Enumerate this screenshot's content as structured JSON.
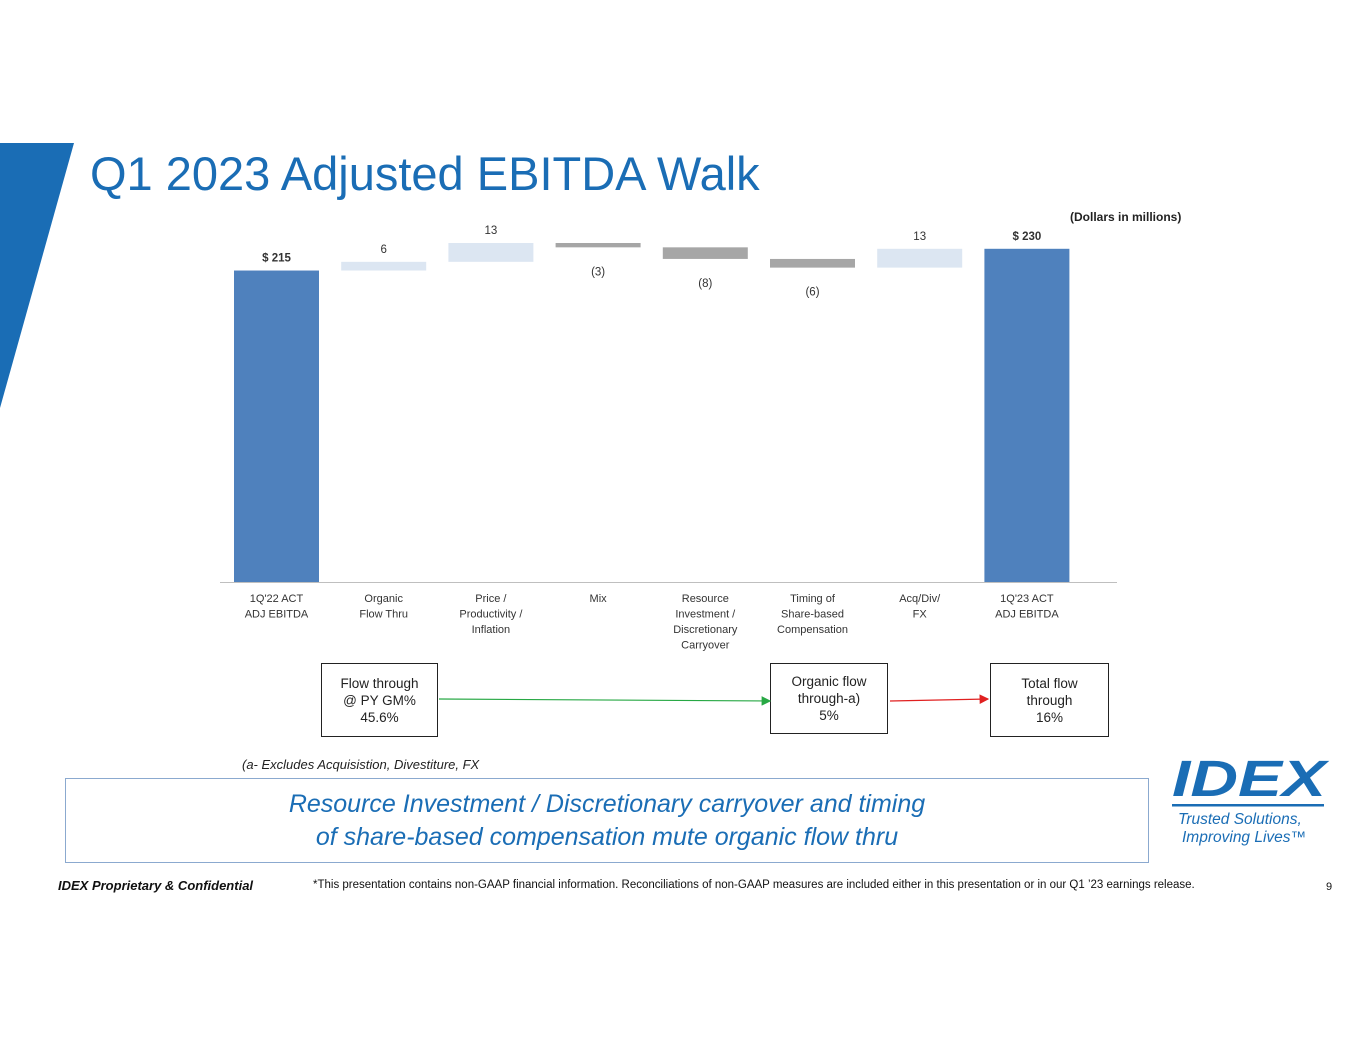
{
  "title": "Q1 2023 Adjusted EBITDA Walk",
  "units_note": "(Dollars in millions)",
  "chart_data": {
    "type": "bar",
    "subtype": "waterfall",
    "title": "Q1 2023 Adjusted EBITDA Walk",
    "ylim": [
      0,
      250
    ],
    "grid": false,
    "categories": [
      [
        "1Q'22 ACT",
        "ADJ EBITDA"
      ],
      [
        "Organic",
        "Flow Thru"
      ],
      [
        "Price /",
        "Productivity /",
        "Inflation"
      ],
      [
        "Mix"
      ],
      [
        "Resource",
        "Investment /",
        "Discretionary",
        "Carryover"
      ],
      [
        "Timing of",
        "Share-based",
        "Compensation"
      ],
      [
        "Acq/Div/",
        "FX"
      ],
      [
        "1Q'23 ACT",
        "ADJ EBITDA"
      ]
    ],
    "values": [
      215,
      6,
      13,
      -3,
      -8,
      -6,
      13,
      230
    ],
    "kinds": [
      "total",
      "increase",
      "increase",
      "decrease",
      "decrease",
      "decrease",
      "increase",
      "total"
    ],
    "data_labels": [
      "$ 215",
      "6",
      "13",
      "(3)",
      "(8)",
      "(6)",
      "13",
      "$ 230"
    ],
    "colors": {
      "total": "#4f81bd",
      "increase": "#dce6f2",
      "decrease": "#a6a6a6",
      "axis": "#bfbfbf",
      "label": "#333333"
    }
  },
  "flow_boxes": [
    {
      "lines": [
        "Flow through",
        "@ PY GM%",
        "45.6%"
      ]
    },
    {
      "lines": [
        "Organic flow",
        "through-a)",
        "5%"
      ]
    },
    {
      "lines": [
        "Total flow",
        "through",
        "16%"
      ]
    }
  ],
  "arrow_colors": {
    "first": "#27a844",
    "second": "#e02020"
  },
  "footnote": "(a- Excludes Acquisistion, Divestiture, FX",
  "callout": {
    "line1": "Resource Investment / Discretionary carryover and timing",
    "line2": "of share-based compensation mute organic flow thru"
  },
  "logo": {
    "brand": "IDEX",
    "tagline1": "Trusted Solutions,",
    "tagline2": "Improving Lives™",
    "color": "#1a6db5"
  },
  "footer": {
    "confidential": "IDEX Proprietary & Confidential",
    "disclaimer": "*This presentation contains non-GAAP financial information. Reconciliations of non-GAAP measures are included either in this presentation or in our Q1 ’23 earnings release.",
    "page_number": "9"
  }
}
